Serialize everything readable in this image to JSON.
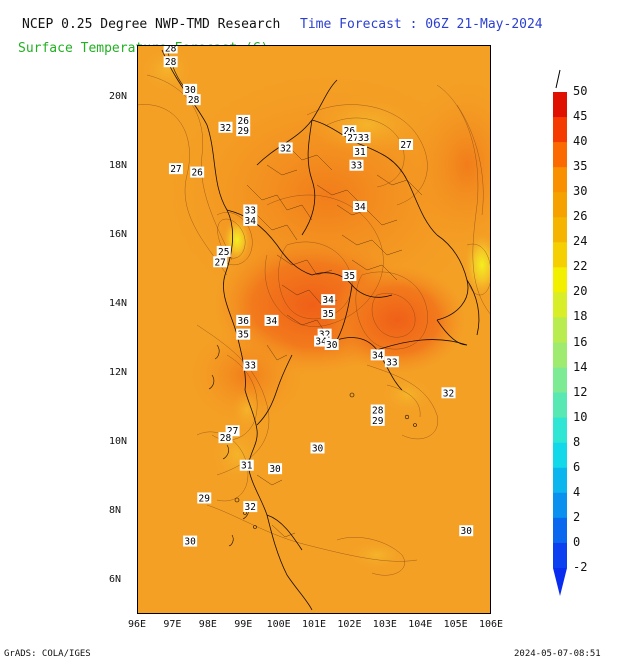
{
  "header": {
    "title_left": "NCEP 0.25 Degree NWP-TMD Research",
    "title_right": "Time Forecast : 06Z 21-May-2024",
    "subtitle": "Surface Temperature Forecast (C)"
  },
  "footer": {
    "left": "GrADS: COLA/IGES",
    "right": "2024-05-07-08:51"
  },
  "axes": {
    "lon_labels": [
      "96E",
      "97E",
      "98E",
      "99E",
      "100E",
      "101E",
      "102E",
      "103E",
      "104E",
      "105E",
      "106E"
    ],
    "lat_labels": [
      "20N",
      "18N",
      "16N",
      "14N",
      "12N",
      "10N",
      "8N",
      "6N"
    ]
  },
  "colorbar": {
    "labels": [
      "50",
      "45",
      "40",
      "35",
      "30",
      "26",
      "24",
      "22",
      "20",
      "18",
      "16",
      "14",
      "12",
      "10",
      "8",
      "6",
      "4",
      "2",
      "0",
      "-2"
    ],
    "colors": [
      "#e01000",
      "#f53a00",
      "#fb6a00",
      "#f89000",
      "#f5a200",
      "#f4b400",
      "#f5cf00",
      "#f3ef00",
      "#d7ee28",
      "#b9ec4e",
      "#9feb70",
      "#7deb93",
      "#57e8b3",
      "#2ee6d3",
      "#12d8ea",
      "#0bb6ef",
      "#0a90ef",
      "#0a68ef",
      "#0a40ef"
    ]
  },
  "contour_labels": [
    {
      "text": "28",
      "lon": 96.95,
      "lat": 21.4
    },
    {
      "text": "28",
      "lon": 96.95,
      "lat": 21.0
    },
    {
      "text": "30",
      "lon": 97.5,
      "lat": 20.2
    },
    {
      "text": "28",
      "lon": 97.6,
      "lat": 19.9
    },
    {
      "text": "32",
      "lon": 98.5,
      "lat": 19.1
    },
    {
      "text": "26",
      "lon": 99.0,
      "lat": 19.3
    },
    {
      "text": "29",
      "lon": 99.0,
      "lat": 19.0
    },
    {
      "text": "26",
      "lon": 102.0,
      "lat": 19.0
    },
    {
      "text": "27",
      "lon": 102.1,
      "lat": 18.8
    },
    {
      "text": "33",
      "lon": 102.4,
      "lat": 18.8
    },
    {
      "text": "31",
      "lon": 102.3,
      "lat": 18.4
    },
    {
      "text": "33",
      "lon": 102.2,
      "lat": 18.0
    },
    {
      "text": "27",
      "lon": 103.6,
      "lat": 18.6
    },
    {
      "text": "32",
      "lon": 100.2,
      "lat": 18.5
    },
    {
      "text": "27",
      "lon": 97.1,
      "lat": 17.9
    },
    {
      "text": "26",
      "lon": 97.7,
      "lat": 17.8
    },
    {
      "text": "33",
      "lon": 99.2,
      "lat": 16.7
    },
    {
      "text": "34",
      "lon": 99.2,
      "lat": 16.4
    },
    {
      "text": "34",
      "lon": 102.3,
      "lat": 16.8
    },
    {
      "text": "25",
      "lon": 98.45,
      "lat": 15.5
    },
    {
      "text": "27",
      "lon": 98.35,
      "lat": 15.2
    },
    {
      "text": "35",
      "lon": 102.0,
      "lat": 14.8
    },
    {
      "text": "34",
      "lon": 101.4,
      "lat": 14.1
    },
    {
      "text": "35",
      "lon": 101.4,
      "lat": 13.7
    },
    {
      "text": "36",
      "lon": 99.0,
      "lat": 13.5
    },
    {
      "text": "34",
      "lon": 99.8,
      "lat": 13.5
    },
    {
      "text": "35",
      "lon": 99.0,
      "lat": 13.1
    },
    {
      "text": "32",
      "lon": 101.3,
      "lat": 13.1
    },
    {
      "text": "34",
      "lon": 101.2,
      "lat": 12.9
    },
    {
      "text": "30",
      "lon": 101.5,
      "lat": 12.8
    },
    {
      "text": "34",
      "lon": 102.8,
      "lat": 12.5
    },
    {
      "text": "33",
      "lon": 103.2,
      "lat": 12.3
    },
    {
      "text": "33",
      "lon": 99.2,
      "lat": 12.2
    },
    {
      "text": "32",
      "lon": 104.8,
      "lat": 11.4
    },
    {
      "text": "28",
      "lon": 102.8,
      "lat": 10.9
    },
    {
      "text": "29",
      "lon": 102.8,
      "lat": 10.6
    },
    {
      "text": "27",
      "lon": 98.7,
      "lat": 10.3
    },
    {
      "text": "28",
      "lon": 98.5,
      "lat": 10.1
    },
    {
      "text": "30",
      "lon": 101.1,
      "lat": 9.8
    },
    {
      "text": "31",
      "lon": 99.1,
      "lat": 9.3
    },
    {
      "text": "30",
      "lon": 99.9,
      "lat": 9.2
    },
    {
      "text": "29",
      "lon": 97.9,
      "lat": 8.35
    },
    {
      "text": "32",
      "lon": 99.2,
      "lat": 8.1
    },
    {
      "text": "30",
      "lon": 97.5,
      "lat": 7.1
    },
    {
      "text": "30",
      "lon": 105.3,
      "lat": 7.4
    }
  ]
}
